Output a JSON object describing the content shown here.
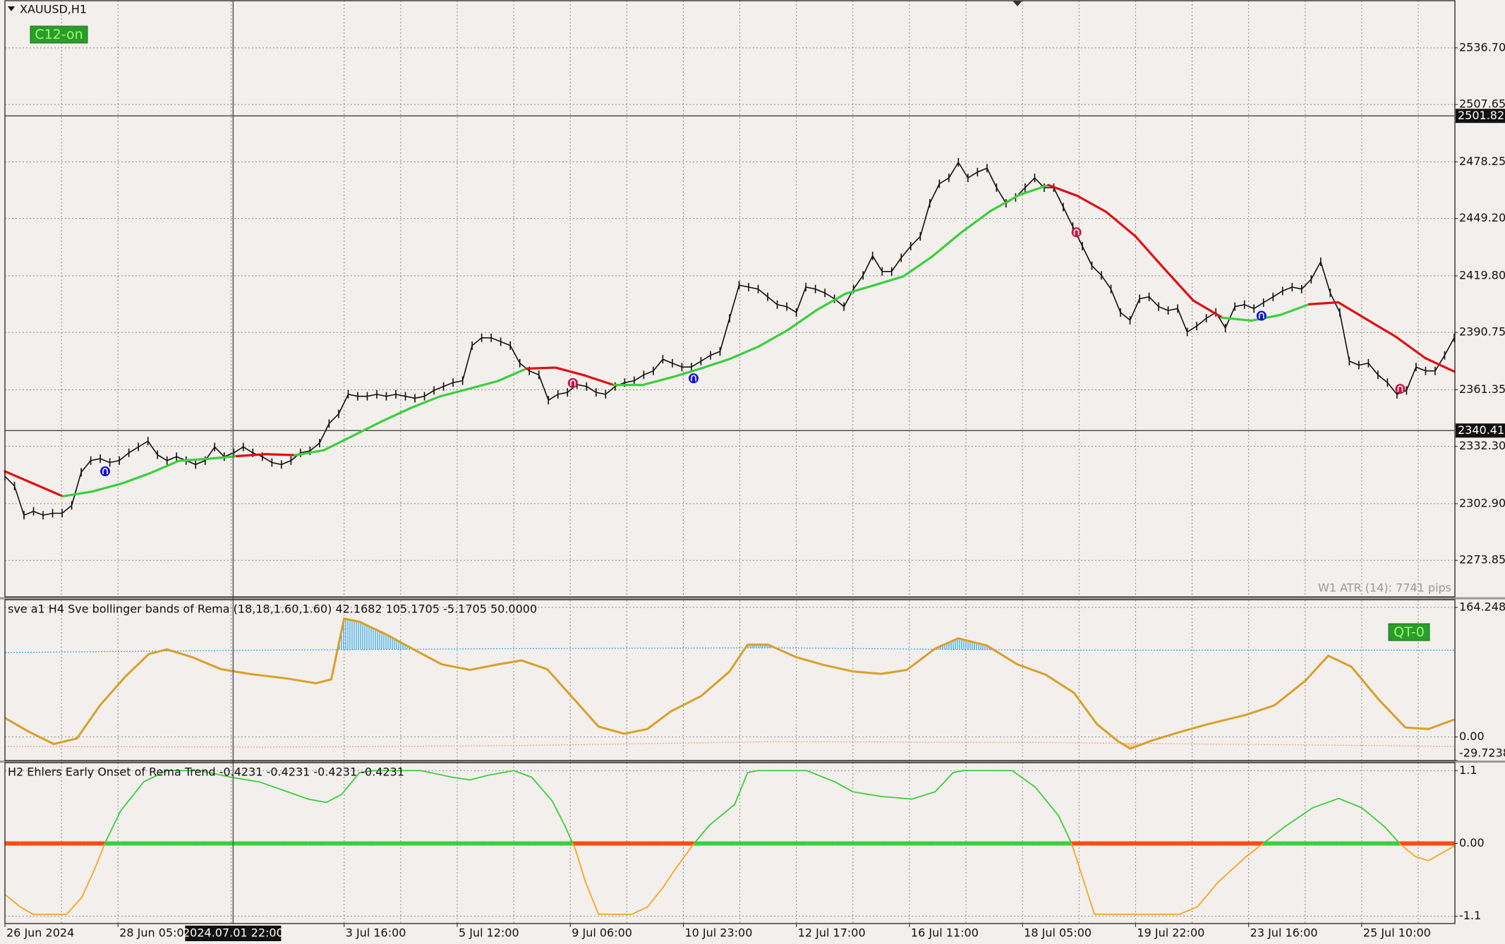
{
  "window": {
    "symbol": "XAUUSD,H1",
    "badge": "C12-on",
    "atr": "W1 ATR (14): 7741 pips"
  },
  "time_axis": {
    "xlim": [
      0,
      564
    ],
    "labels": [
      {
        "value": 0,
        "label": "26 Jun 2024"
      },
      {
        "value": 44,
        "label": "28 Jun 05:00"
      },
      {
        "value": 132,
        "label": "3 Jul 16:00"
      },
      {
        "value": 176,
        "label": "5 Jul 12:00"
      },
      {
        "value": 220,
        "label": "9 Jul 06:00"
      },
      {
        "value": 264,
        "label": "10 Jul 23:00"
      },
      {
        "value": 308,
        "label": "12 Jul 17:00"
      },
      {
        "value": 352,
        "label": "16 Jul 11:00"
      },
      {
        "value": 396,
        "label": "18 Jul 05:00"
      },
      {
        "value": 440,
        "label": "19 Jul 22:00"
      },
      {
        "value": 484,
        "label": "23 Jul 16:00"
      },
      {
        "value": 528,
        "label": "25 Jul 10:00"
      }
    ],
    "cursor": {
      "value": 88.8,
      "label": "2024.07.01 22:00"
    }
  },
  "price_panel": {
    "ylim": [
      2255.1,
      2560.9
    ],
    "yticks": [
      {
        "value": 2536.7,
        "label": "2536.70"
      },
      2507.65,
      2478.25,
      {
        "value": 2449.2,
        "label": "2449.20"
      },
      {
        "value": 2419.8,
        "label": "2419.80"
      },
      2390.75,
      2361.35,
      {
        "value": 2332.3,
        "label": "2332.30"
      },
      {
        "value": 2302.9,
        "label": "2302.90"
      },
      2273.85
    ],
    "marked_prices": [
      2501.82,
      2340.41
    ],
    "close": [
      2317,
      2312,
      2297,
      2299,
      2297,
      2298,
      2298,
      2302,
      2319,
      2325,
      2326,
      2324,
      2325,
      2329,
      2332,
      2335,
      2328,
      2325,
      2327,
      2325,
      2323,
      2325,
      2332,
      2327,
      2329,
      2332,
      2329,
      2327,
      2324,
      2323,
      2325,
      2329,
      2330,
      2334,
      2344,
      2349,
      2359,
      2358,
      2358,
      2359,
      2358,
      2359,
      2358,
      2357,
      2358,
      2361,
      2363,
      2365,
      2366,
      2384,
      2388,
      2388,
      2386,
      2384,
      2375,
      2371,
      2369,
      2356,
      2359,
      2360,
      2364,
      2363,
      2360,
      2359,
      2363,
      2365,
      2366,
      2369,
      2371,
      2377,
      2375,
      2373,
      2373,
      2376,
      2379,
      2381,
      2398,
      2415,
      2414,
      2413,
      2409,
      2405,
      2404,
      2401,
      2414,
      2413,
      2411,
      2408,
      2404,
      2413,
      2420,
      2430,
      2422,
      2422,
      2429,
      2435,
      2440,
      2457,
      2467,
      2470,
      2478,
      2470,
      2473,
      2475,
      2465,
      2457,
      2460,
      2465,
      2470,
      2465,
      2465,
      2455,
      2445,
      2435,
      2425,
      2420,
      2413,
      2401,
      2397,
      2408,
      2409,
      2404,
      2402,
      2403,
      2391,
      2394,
      2398,
      2401,
      2393,
      2404,
      2405,
      2403,
      2406,
      2409,
      2412,
      2414,
      2413,
      2418,
      2427,
      2411,
      2401,
      2376,
      2374,
      2375,
      2369,
      2365,
      2359,
      2361,
      2373,
      2371,
      2371,
      2379,
      2388
    ],
    "ma": {
      "values": [
        2319.5,
        2313.1,
        2306.7,
        2309.1,
        2313.1,
        2318.5,
        2324.9,
        2325.9,
        2327.3,
        2328.3,
        2327.8,
        2330.3,
        2337.7,
        2345.1,
        2352.0,
        2357.9,
        2361.8,
        2365.8,
        2372.2,
        2372.7,
        2368.7,
        2363.8,
        2363.8,
        2367.7,
        2372.2,
        2377.1,
        2383.5,
        2391.9,
        2402.2,
        2410.6,
        2415.0,
        2419.5,
        2429.8,
        2442.1,
        2453.0,
        2461.3,
        2466.3,
        2460.8,
        2452.5,
        2440.1,
        2423.4,
        2407.1,
        2398.3,
        2396.8,
        2399.7,
        2405.2,
        2406.2,
        2397.3,
        2388.4,
        2377.6,
        2370.7
      ],
      "colors": [
        "#e01010",
        "#e01010",
        "#e01010",
        "#3ccf3c",
        "#3ccf3c",
        "#3ccf3c",
        "#3ccf3c",
        "#3ccf3c",
        "#3ccf3c",
        "#e01010",
        "#e01010",
        "#3ccf3c",
        "#3ccf3c",
        "#3ccf3c",
        "#3ccf3c",
        "#3ccf3c",
        "#3ccf3c",
        "#3ccf3c",
        "#3ccf3c",
        "#e01010",
        "#e01010",
        "#e01010",
        "#3ccf3c",
        "#3ccf3c",
        "#3ccf3c",
        "#3ccf3c",
        "#3ccf3c",
        "#3ccf3c",
        "#3ccf3c",
        "#3ccf3c",
        "#3ccf3c",
        "#3ccf3c",
        "#3ccf3c",
        "#3ccf3c",
        "#3ccf3c",
        "#3ccf3c",
        "#3ccf3c",
        "#e01010",
        "#e01010",
        "#e01010",
        "#e01010",
        "#e01010",
        "#e01010",
        "#3ccf3c",
        "#3ccf3c",
        "#3ccf3c",
        "#e01010",
        "#e01010",
        "#e01010",
        "#e01010",
        "#e01010"
      ]
    },
    "signals": [
      {
        "x": 39,
        "value": 2319.5,
        "color": "#1414c8"
      },
      {
        "x": 268,
        "value": 2367.2,
        "color": "#1414c8"
      },
      {
        "x": 489,
        "value": 2399.3,
        "color": "#1414c8"
      },
      {
        "x": 221,
        "value": 2364.8,
        "color": "#c8144a"
      },
      {
        "x": 417,
        "value": 2442.1,
        "color": "#c8144a"
      },
      {
        "x": 543,
        "value": 2361.8,
        "color": "#c8144a"
      }
    ]
  },
  "osc_panel": {
    "title": "sve a1 H4 Sve bollinger bands of Rema (18,18,1.60,1.60) 42.1682 105.1705 -5.1705 50.0000",
    "badge": "QT-0",
    "ylim": [
      -30,
      174
    ],
    "yticks": [
      164.2484,
      {
        "value": 0,
        "label": "0.00"
      },
      -29.7238
    ],
    "x": [
      0,
      9,
      19,
      28,
      37,
      47,
      56,
      63,
      73,
      84,
      95,
      110,
      121,
      127,
      132,
      138,
      149,
      159,
      170,
      181,
      192,
      201,
      211,
      222,
      231,
      241,
      250,
      259,
      271,
      282,
      289,
      297,
      308,
      319,
      330,
      341,
      351,
      362,
      371,
      382,
      394,
      405,
      416,
      425,
      433,
      438,
      446,
      457,
      468,
      483,
      494,
      506,
      515,
      524,
      535,
      545,
      554,
      564
    ],
    "values": [
      24,
      7,
      -9,
      -2,
      40,
      77,
      105,
      111,
      101,
      86,
      80,
      74,
      68,
      73,
      150,
      146,
      129,
      111,
      92,
      85,
      92,
      97,
      86,
      46,
      13,
      4,
      10,
      32,
      52,
      83,
      117,
      117,
      101,
      91,
      83,
      80,
      85,
      112,
      125,
      116,
      92,
      79,
      56,
      16,
      -5,
      -15,
      -5,
      6,
      16,
      28,
      40,
      71,
      103,
      89,
      46,
      12,
      10,
      22
    ],
    "color": "#d9a028",
    "upper_band": {
      "x": [
        0,
        100,
        200,
        300,
        400,
        500,
        564
      ],
      "values": [
        107,
        110,
        112,
        113,
        110,
        110,
        110
      ],
      "color": "#2aa8e8"
    },
    "lower_band": {
      "x": [
        0,
        100,
        200,
        300,
        400,
        500,
        564
      ],
      "values": [
        -12,
        -13,
        -11,
        -6,
        -7,
        -10,
        -12
      ],
      "color": "#f4a070"
    }
  },
  "trend_panel": {
    "title": "H2 Ehlers Early Onset of Rema Trend -0.4231 -0.4231 -0.4231 -0.4231",
    "ylim": [
      -1.21,
      1.22
    ],
    "yticks": [
      1.1,
      {
        "value": 0,
        "label": "0.00"
      },
      -1.1
    ],
    "x": [
      0,
      6,
      11,
      24,
      30,
      35,
      39,
      45,
      54,
      63,
      76,
      88,
      99,
      110,
      118,
      125,
      131,
      138,
      144,
      162,
      174,
      181,
      188,
      198,
      205,
      213,
      218,
      222,
      226,
      231,
      244,
      250,
      256,
      261,
      268,
      274,
      284,
      289,
      293,
      312,
      323,
      330,
      341,
      353,
      362,
      369,
      373,
      392,
      401,
      410,
      415,
      420,
      424,
      457,
      464,
      472,
      483,
      490,
      498,
      509,
      519,
      528,
      537,
      543,
      549,
      554,
      564
    ],
    "values": [
      -0.77,
      -0.96,
      -1.07,
      -1.07,
      -0.81,
      -0.38,
      0.01,
      0.49,
      0.93,
      1.1,
      1.1,
      1,
      0.93,
      0.78,
      0.67,
      0.62,
      0.74,
      1.07,
      1.1,
      1.1,
      1,
      0.96,
      1.03,
      1.1,
      1,
      0.64,
      0.26,
      -0.09,
      -0.59,
      -1.07,
      -1.07,
      -0.96,
      -0.67,
      -0.38,
      -0.01,
      0.27,
      0.59,
      1.07,
      1.1,
      1.1,
      0.93,
      0.78,
      0.71,
      0.67,
      0.78,
      1.07,
      1.1,
      1.1,
      0.85,
      0.42,
      0.01,
      -0.59,
      -1.07,
      -1.07,
      -0.96,
      -0.59,
      -0.2,
      0.01,
      0.25,
      0.54,
      0.68,
      0.54,
      0.25,
      -0.01,
      -0.2,
      -0.26,
      -0.04
    ],
    "up_color": "#3ccf3c",
    "down_color": "#f5a623",
    "zero_down_color": "#ff4a10"
  }
}
